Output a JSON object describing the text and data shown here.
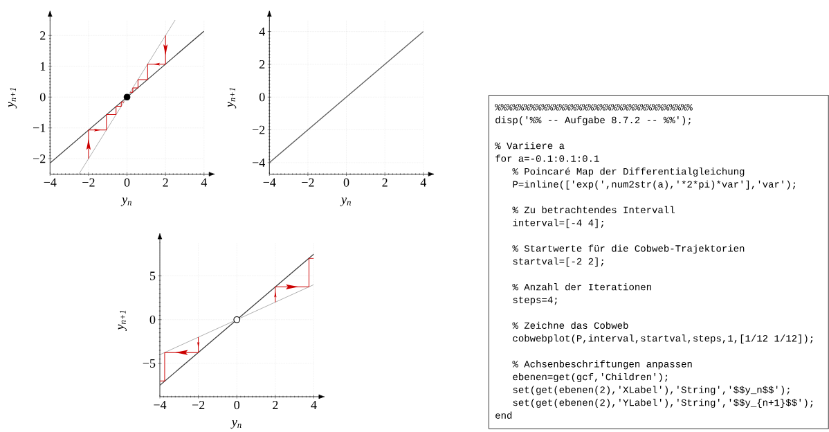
{
  "chart_data": [
    {
      "type": "line",
      "xlabel": "y$_{n}$",
      "ylabel": "y$_{n+1}$",
      "xlim": [
        -4,
        4
      ],
      "ylim": [
        -2.5,
        2.5
      ],
      "xticks": [
        -4,
        -2,
        0,
        2,
        4
      ],
      "yticks": [
        -2,
        -1,
        0,
        1,
        2
      ],
      "grid": true,
      "series": [
        {
          "x": [
            -4,
            4
          ],
          "values": [
            -2.14,
            2.14
          ],
          "color": "#404040"
        },
        {
          "x": [
            -2.5,
            2.5
          ],
          "values": [
            -2.5,
            2.5
          ],
          "color": "#8c8c8c"
        },
        {
          "x": [
            2,
            2,
            1.07,
            1.07,
            0.57,
            0.57,
            0.3,
            0.3,
            0.16
          ],
          "values": [
            2,
            1.07,
            1.07,
            0.57,
            0.57,
            0.3,
            0.3,
            0.16,
            0.16
          ],
          "color": "#cc0000"
        },
        {
          "x": [
            -2,
            -2,
            -1.07,
            -1.07,
            -0.57,
            -0.57,
            -0.3,
            -0.3,
            -0.16
          ],
          "values": [
            -2,
            -1.07,
            -1.07,
            -0.57,
            -0.57,
            -0.3,
            -0.3,
            -0.16,
            -0.16
          ],
          "color": "#cc0000"
        },
        {
          "type": "scatter",
          "x": [
            0
          ],
          "values": [
            0
          ],
          "color": "#000000",
          "marker": "circle"
        }
      ]
    },
    {
      "type": "line",
      "xlabel": "y$_{n}$",
      "ylabel": "y$_{n+1}$",
      "xlim": [
        -4,
        4
      ],
      "ylim": [
        -4.7,
        4.7
      ],
      "xticks": [
        -4,
        -2,
        0,
        2,
        4
      ],
      "yticks": [
        -4,
        -2,
        0,
        2,
        4
      ],
      "grid": true,
      "series": [
        {
          "x": [
            -4,
            4
          ],
          "values": [
            -4,
            4
          ],
          "color": "#606060"
        }
      ]
    },
    {
      "type": "line",
      "xlabel": "y$_{n}$",
      "ylabel": "y$_{n+1}$",
      "xlim": [
        -4,
        4
      ],
      "ylim": [
        -8.8,
        8.8
      ],
      "xticks": [
        -4,
        -2,
        0,
        2,
        4
      ],
      "yticks": [
        -5,
        0,
        5
      ],
      "grid": true,
      "series": [
        {
          "x": [
            -4,
            4
          ],
          "values": [
            -7.5,
            7.5
          ],
          "color": "#404040"
        },
        {
          "x": [
            -4,
            4
          ],
          "values": [
            -4,
            4
          ],
          "color": "#8c8c8c"
        },
        {
          "x": [
            2,
            2,
            3.75,
            3.75,
            4
          ],
          "values": [
            2,
            3.75,
            3.75,
            7.0,
            7.0
          ],
          "color": "#cc0000"
        },
        {
          "x": [
            -2,
            -2,
            -3.75,
            -3.75,
            -4
          ],
          "values": [
            -2,
            -3.75,
            -3.75,
            -7.0,
            -7.0
          ],
          "color": "#cc0000"
        },
        {
          "type": "scatter",
          "x": [
            0
          ],
          "values": [
            0
          ],
          "color": "#ffffff",
          "marker": "circle"
        }
      ]
    },
    {
      "type": "other",
      "annotations": [
        "%%%%%%%%%%%%%%%%%%%%%%%%%%%%%%%%%%",
        "disp('%% -- Aufgabe 8.7.2 -- %%');",
        "% Variiere a",
        "for a=-0.1:0.1:0.1",
        "% Poincaré Map der Differentialgleichung",
        "P=inline(['exp(',num2str(a),'*2*pi)*var'],'var');",
        "% Zu betrachtendes Intervall",
        "interval=[-4 4];",
        "% Startwerte für die Cobweb-Trajektorien",
        "startval=[-2 2];",
        "% Anzahl der Iterationen",
        "steps=4;",
        "% Zeichne das Cobweb",
        "cobwebplot(P,interval,startval,steps,1,[1/12 1/12]);",
        "% Achsenbeschriftungen anpassen",
        "ebenen=get(gcf,'Children');",
        "set(get(ebenen(2),'XLabel'),'String','$$y_n$$');",
        "set(get(ebenen(2),'YLabel'),'String','$$y_{n+1}$$');",
        "end"
      ]
    }
  ]
}
